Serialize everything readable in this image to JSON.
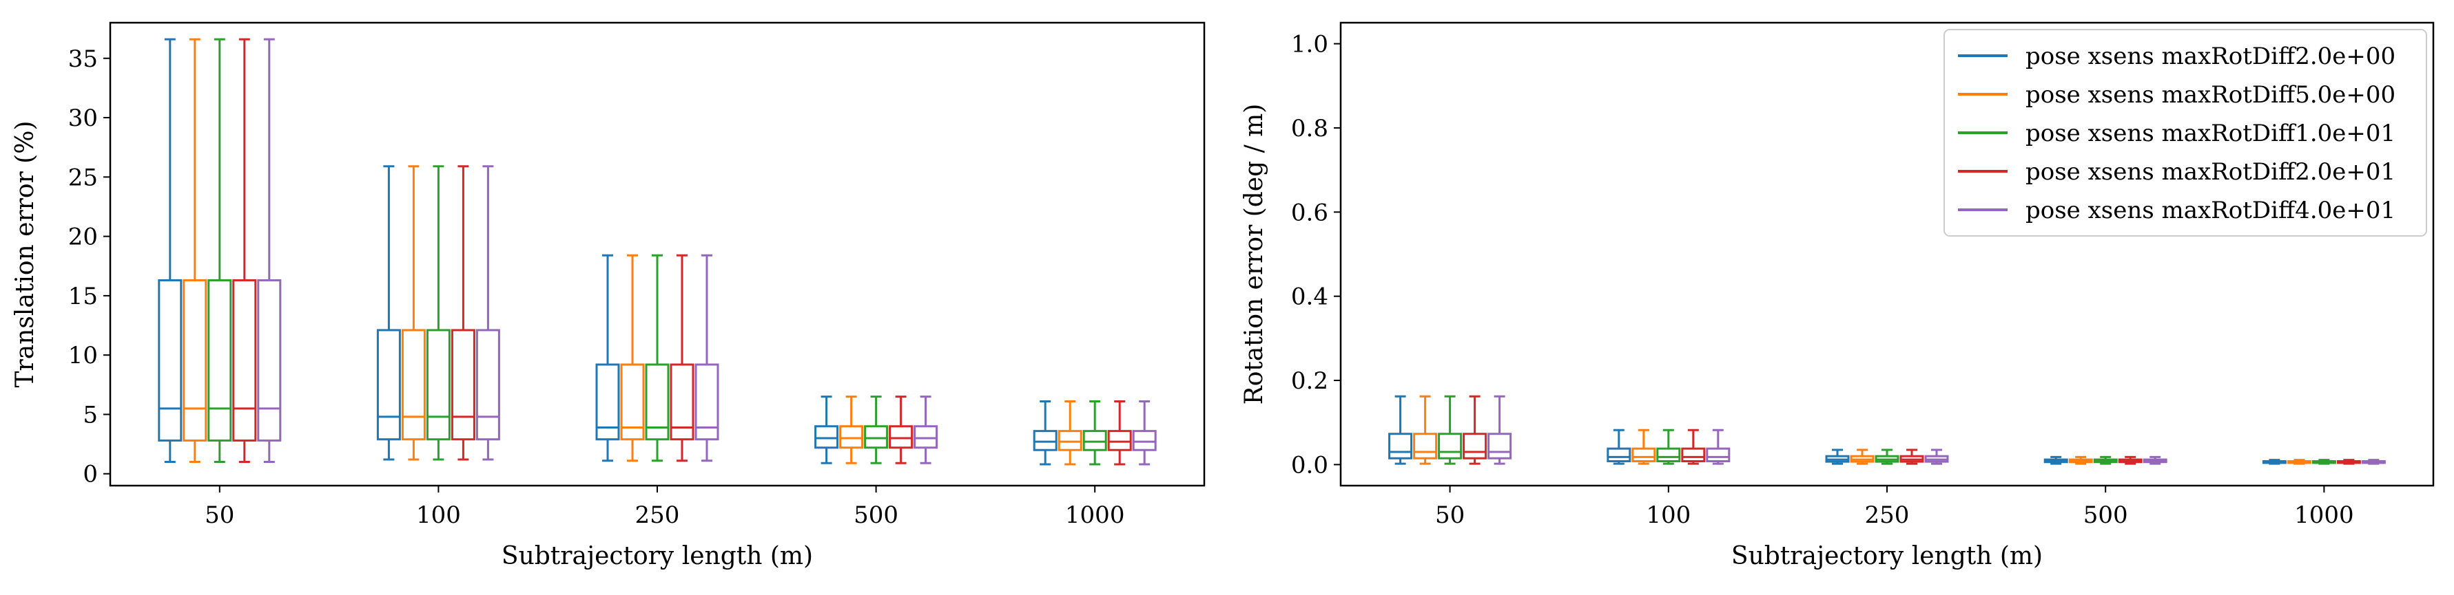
{
  "chart_data": [
    {
      "type": "box",
      "xlabel": "Subtrajectory length (m)",
      "ylabel": "Translation error (%)",
      "categories": [
        "50",
        "100",
        "250",
        "500",
        "1000"
      ],
      "ylim": [
        -1,
        38
      ],
      "yticks": [
        0,
        5,
        10,
        15,
        20,
        25,
        30,
        35
      ],
      "series": [
        {
          "name": "pose xsens maxRotDiff2.0e+00",
          "color": "#1f77b4",
          "boxes": [
            {
              "whislo": 1.0,
              "q1": 2.8,
              "med": 5.5,
              "q3": 16.3,
              "whishi": 36.6
            },
            {
              "whislo": 1.2,
              "q1": 2.9,
              "med": 4.8,
              "q3": 12.1,
              "whishi": 25.9
            },
            {
              "whislo": 1.1,
              "q1": 2.9,
              "med": 3.9,
              "q3": 9.2,
              "whishi": 18.4
            },
            {
              "whislo": 0.9,
              "q1": 2.2,
              "med": 3.0,
              "q3": 4.0,
              "whishi": 6.5
            },
            {
              "whislo": 0.8,
              "q1": 2.0,
              "med": 2.7,
              "q3": 3.6,
              "whishi": 6.1
            }
          ]
        },
        {
          "name": "pose xsens maxRotDiff5.0e+00",
          "color": "#ff7f0e",
          "boxes": [
            {
              "whislo": 1.0,
              "q1": 2.8,
              "med": 5.5,
              "q3": 16.3,
              "whishi": 36.6
            },
            {
              "whislo": 1.2,
              "q1": 2.9,
              "med": 4.8,
              "q3": 12.1,
              "whishi": 25.9
            },
            {
              "whislo": 1.1,
              "q1": 2.9,
              "med": 3.9,
              "q3": 9.2,
              "whishi": 18.4
            },
            {
              "whislo": 0.9,
              "q1": 2.2,
              "med": 3.0,
              "q3": 4.0,
              "whishi": 6.5
            },
            {
              "whislo": 0.8,
              "q1": 2.0,
              "med": 2.7,
              "q3": 3.6,
              "whishi": 6.1
            }
          ]
        },
        {
          "name": "pose xsens maxRotDiff1.0e+01",
          "color": "#2ca02c",
          "boxes": [
            {
              "whislo": 1.0,
              "q1": 2.8,
              "med": 5.5,
              "q3": 16.3,
              "whishi": 36.6
            },
            {
              "whislo": 1.2,
              "q1": 2.9,
              "med": 4.8,
              "q3": 12.1,
              "whishi": 25.9
            },
            {
              "whislo": 1.1,
              "q1": 2.9,
              "med": 3.9,
              "q3": 9.2,
              "whishi": 18.4
            },
            {
              "whislo": 0.9,
              "q1": 2.2,
              "med": 3.0,
              "q3": 4.0,
              "whishi": 6.5
            },
            {
              "whislo": 0.8,
              "q1": 2.0,
              "med": 2.7,
              "q3": 3.6,
              "whishi": 6.1
            }
          ]
        },
        {
          "name": "pose xsens maxRotDiff2.0e+01",
          "color": "#d62728",
          "boxes": [
            {
              "whislo": 1.0,
              "q1": 2.8,
              "med": 5.5,
              "q3": 16.3,
              "whishi": 36.6
            },
            {
              "whislo": 1.2,
              "q1": 2.9,
              "med": 4.8,
              "q3": 12.1,
              "whishi": 25.9
            },
            {
              "whislo": 1.1,
              "q1": 2.9,
              "med": 3.9,
              "q3": 9.2,
              "whishi": 18.4
            },
            {
              "whislo": 0.9,
              "q1": 2.2,
              "med": 3.0,
              "q3": 4.0,
              "whishi": 6.5
            },
            {
              "whislo": 0.8,
              "q1": 2.0,
              "med": 2.7,
              "q3": 3.6,
              "whishi": 6.1
            }
          ]
        },
        {
          "name": "pose xsens maxRotDiff4.0e+01",
          "color": "#9467bd",
          "boxes": [
            {
              "whislo": 1.0,
              "q1": 2.8,
              "med": 5.5,
              "q3": 16.3,
              "whishi": 36.6
            },
            {
              "whislo": 1.2,
              "q1": 2.9,
              "med": 4.8,
              "q3": 12.1,
              "whishi": 25.9
            },
            {
              "whislo": 1.1,
              "q1": 2.9,
              "med": 3.9,
              "q3": 9.2,
              "whishi": 18.4
            },
            {
              "whislo": 0.9,
              "q1": 2.2,
              "med": 3.0,
              "q3": 4.0,
              "whishi": 6.5
            },
            {
              "whislo": 0.8,
              "q1": 2.0,
              "med": 2.7,
              "q3": 3.6,
              "whishi": 6.1
            }
          ]
        }
      ],
      "legend": "none"
    },
    {
      "type": "box",
      "xlabel": "Subtrajectory length (m)",
      "ylabel": "Rotation error (deg / m)",
      "categories": [
        "50",
        "100",
        "250",
        "500",
        "1000"
      ],
      "ylim": [
        -0.05,
        1.05
      ],
      "yticks": [
        0.0,
        0.2,
        0.4,
        0.6,
        0.8,
        1.0
      ],
      "yticklabels": [
        "0.0",
        "0.2",
        "0.4",
        "0.6",
        "0.8",
        "1.0"
      ],
      "series": [
        {
          "name": "pose xsens maxRotDiff2.0e+00",
          "color": "#1f77b4",
          "boxes": [
            {
              "whislo": 0.002,
              "q1": 0.015,
              "med": 0.03,
              "q3": 0.073,
              "whishi": 0.162
            },
            {
              "whislo": 0.002,
              "q1": 0.008,
              "med": 0.018,
              "q3": 0.038,
              "whishi": 0.082
            },
            {
              "whislo": 0.002,
              "q1": 0.007,
              "med": 0.012,
              "q3": 0.02,
              "whishi": 0.035
            },
            {
              "whislo": 0.002,
              "q1": 0.006,
              "med": 0.009,
              "q3": 0.012,
              "whishi": 0.018
            },
            {
              "whislo": 0.002,
              "q1": 0.004,
              "med": 0.006,
              "q3": 0.008,
              "whishi": 0.011
            }
          ]
        },
        {
          "name": "pose xsens maxRotDiff5.0e+00",
          "color": "#ff7f0e",
          "boxes": [
            {
              "whislo": 0.002,
              "q1": 0.015,
              "med": 0.03,
              "q3": 0.073,
              "whishi": 0.162
            },
            {
              "whislo": 0.002,
              "q1": 0.008,
              "med": 0.018,
              "q3": 0.038,
              "whishi": 0.082
            },
            {
              "whislo": 0.002,
              "q1": 0.007,
              "med": 0.012,
              "q3": 0.02,
              "whishi": 0.035
            },
            {
              "whislo": 0.002,
              "q1": 0.006,
              "med": 0.009,
              "q3": 0.012,
              "whishi": 0.018
            },
            {
              "whislo": 0.002,
              "q1": 0.004,
              "med": 0.006,
              "q3": 0.008,
              "whishi": 0.011
            }
          ]
        },
        {
          "name": "pose xsens maxRotDiff1.0e+01",
          "color": "#2ca02c",
          "boxes": [
            {
              "whislo": 0.002,
              "q1": 0.015,
              "med": 0.03,
              "q3": 0.073,
              "whishi": 0.162
            },
            {
              "whislo": 0.002,
              "q1": 0.008,
              "med": 0.018,
              "q3": 0.038,
              "whishi": 0.082
            },
            {
              "whislo": 0.002,
              "q1": 0.007,
              "med": 0.012,
              "q3": 0.02,
              "whishi": 0.035
            },
            {
              "whislo": 0.002,
              "q1": 0.006,
              "med": 0.009,
              "q3": 0.012,
              "whishi": 0.018
            },
            {
              "whislo": 0.002,
              "q1": 0.004,
              "med": 0.006,
              "q3": 0.008,
              "whishi": 0.011
            }
          ]
        },
        {
          "name": "pose xsens maxRotDiff2.0e+01",
          "color": "#d62728",
          "boxes": [
            {
              "whislo": 0.002,
              "q1": 0.015,
              "med": 0.03,
              "q3": 0.073,
              "whishi": 0.162
            },
            {
              "whislo": 0.002,
              "q1": 0.008,
              "med": 0.018,
              "q3": 0.038,
              "whishi": 0.082
            },
            {
              "whislo": 0.002,
              "q1": 0.007,
              "med": 0.012,
              "q3": 0.02,
              "whishi": 0.035
            },
            {
              "whislo": 0.002,
              "q1": 0.006,
              "med": 0.009,
              "q3": 0.012,
              "whishi": 0.018
            },
            {
              "whislo": 0.002,
              "q1": 0.004,
              "med": 0.006,
              "q3": 0.008,
              "whishi": 0.011
            }
          ]
        },
        {
          "name": "pose xsens maxRotDiff4.0e+01",
          "color": "#9467bd",
          "boxes": [
            {
              "whislo": 0.002,
              "q1": 0.015,
              "med": 0.03,
              "q3": 0.073,
              "whishi": 0.162
            },
            {
              "whislo": 0.002,
              "q1": 0.008,
              "med": 0.018,
              "q3": 0.038,
              "whishi": 0.082
            },
            {
              "whislo": 0.002,
              "q1": 0.007,
              "med": 0.012,
              "q3": 0.02,
              "whishi": 0.035
            },
            {
              "whislo": 0.002,
              "q1": 0.006,
              "med": 0.009,
              "q3": 0.012,
              "whishi": 0.018
            },
            {
              "whislo": 0.002,
              "q1": 0.004,
              "med": 0.006,
              "q3": 0.008,
              "whishi": 0.011
            }
          ]
        }
      ],
      "legend": "top-right"
    }
  ]
}
